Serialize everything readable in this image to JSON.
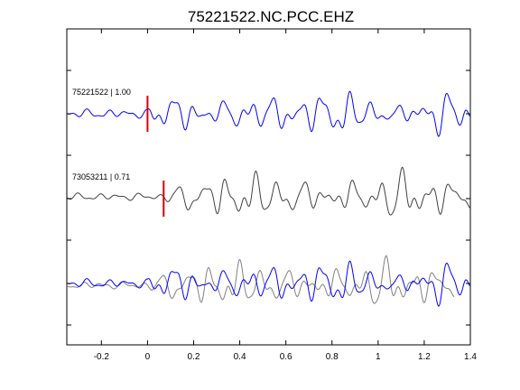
{
  "chart_data": {
    "type": "line",
    "title": "75221522.NC.PCC.EHZ",
    "xlabel": "",
    "ylabel": "",
    "xlim": [
      -0.35,
      1.4
    ],
    "x_ticks": [
      -0.2,
      0,
      0.2,
      0.4,
      0.6,
      0.8,
      1,
      1.2,
      1.4
    ],
    "x_tick_labels": [
      "-0.2",
      "0",
      "0.2",
      "0.4",
      "0.6",
      "0.8",
      "1",
      "1.2",
      "1.4"
    ],
    "grid": false,
    "legend": "none",
    "colors": {
      "reference": "#0000ff",
      "match": "#404040",
      "pick": "#dd0000",
      "axes": "#000000"
    },
    "traces": [
      {
        "label": "75221522 | 1.00",
        "color": "#0000ff",
        "pick_time": 0.0,
        "panel": "top"
      },
      {
        "label": "73053211 | 0.71",
        "color": "#404040",
        "pick_time": 0.07,
        "panel": "middle"
      },
      {
        "label": "",
        "color": "overlay",
        "pick_time": null,
        "panel": "bottom"
      }
    ]
  }
}
